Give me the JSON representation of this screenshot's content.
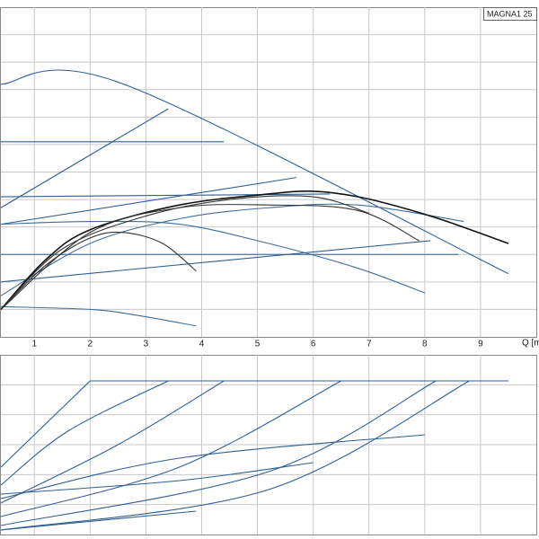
{
  "chart_data": [
    {
      "type": "line",
      "title": "MAGNA1 25",
      "x_label": "Q [m",
      "xlim": [
        0.4,
        10
      ],
      "xticks": [
        1,
        2,
        3,
        4,
        5,
        6,
        7,
        8,
        9
      ],
      "ylim": [
        0,
        12
      ],
      "grid": true,
      "series": [
        {
          "color": "#2f5f93",
          "x": [
            0.4,
            2.6,
            9.5
          ],
          "values": [
            9.2,
            9.2,
            2.3
          ]
        },
        {
          "color": "#2f5f93",
          "x": [
            0.4,
            4.4
          ],
          "values": [
            7.1,
            7.1
          ]
        },
        {
          "color": "#2f5f93",
          "x": [
            0.4,
            3.4
          ],
          "values": [
            4.7,
            8.3
          ]
        },
        {
          "color": "#2f5f93",
          "x": [
            0.4,
            6.3
          ],
          "values": [
            5.1,
            5.2
          ]
        },
        {
          "color": "#2f5f93",
          "x": [
            0.4,
            5.7
          ],
          "values": [
            4.1,
            5.8
          ]
        },
        {
          "color": "#2f5f93",
          "x": [
            0.4,
            8.6
          ],
          "values": [
            3.0,
            3.0
          ]
        },
        {
          "color": "#2f5f93",
          "x": [
            0.4,
            8.1
          ],
          "values": [
            2.0,
            3.5
          ]
        },
        {
          "color": "#3d6d9c",
          "x": [
            0.4,
            2.0,
            3.6,
            5.2,
            6.8,
            8.0
          ],
          "values": [
            4.1,
            4.2,
            4.1,
            3.4,
            2.5,
            1.6
          ]
        },
        {
          "color": "#3d6d9c",
          "x": [
            0.4,
            2.0,
            2.8,
            3.9
          ],
          "values": [
            1.1,
            1.0,
            0.8,
            0.4
          ]
        },
        {
          "color": "#3d6d9c",
          "x": [
            0.4,
            2.0,
            3.6,
            5.2,
            6.8,
            8.7
          ],
          "values": [
            1.5,
            3.4,
            4.3,
            4.7,
            4.8,
            4.2
          ]
        },
        {
          "color": "#111111",
          "x": [
            0.4,
            1.2,
            2.0,
            3.6,
            5.2,
            6.0,
            6.8,
            7.6,
            8.4,
            9.5
          ],
          "values": [
            1.0,
            2.8,
            3.9,
            4.8,
            5.2,
            5.3,
            5.1,
            4.7,
            4.2,
            3.4
          ]
        },
        {
          "color": "#333333",
          "x": [
            0.4,
            1.2,
            2.0,
            2.6,
            3.3,
            3.9
          ],
          "values": [
            1.0,
            2.6,
            3.6,
            3.8,
            3.4,
            2.4
          ]
        },
        {
          "color": "#333333",
          "x": [
            0.4,
            2.0,
            3.6,
            5.2,
            6.8,
            7.9
          ],
          "values": [
            1.0,
            3.8,
            4.7,
            4.8,
            4.6,
            3.5
          ]
        },
        {
          "color": "#333333",
          "x": [
            0.4,
            1.5,
            3.0,
            4.5,
            6.0,
            7.0
          ],
          "values": [
            1.0,
            3.2,
            4.4,
            5.0,
            5.1,
            4.5
          ]
        }
      ]
    },
    {
      "type": "line",
      "xlim": [
        0.4,
        10
      ],
      "ylim": [
        0,
        200
      ],
      "grid": true,
      "series": [
        {
          "color": "#2f5f93",
          "x": [
            0.4,
            2.0
          ],
          "values": [
            75,
            171
          ]
        },
        {
          "color": "#2f5f93",
          "x": [
            2.0,
            9.5
          ],
          "values": [
            171,
            171
          ]
        },
        {
          "color": "#2f5f93",
          "x": [
            0.4,
            1.6,
            3.4
          ],
          "values": [
            55,
            115,
            171
          ]
        },
        {
          "color": "#2f5f93",
          "x": [
            0.4,
            2.5,
            4.4
          ],
          "values": [
            35,
            100,
            171
          ]
        },
        {
          "color": "#2f5f93",
          "x": [
            0.4,
            3.6,
            6.5
          ],
          "values": [
            20,
            75,
            171
          ]
        },
        {
          "color": "#2f5f93",
          "x": [
            0.4,
            5.2,
            8.2
          ],
          "values": [
            10,
            70,
            171
          ]
        },
        {
          "color": "#2f5f93",
          "x": [
            0.4,
            5.2,
            8.8
          ],
          "values": [
            5,
            50,
            171
          ]
        },
        {
          "color": "#2f5f93",
          "x": [
            0.4,
            3.6,
            8.0
          ],
          "values": [
            40,
            85,
            111
          ]
        },
        {
          "color": "#2f5f93",
          "x": [
            0.4,
            3.6,
            6.0
          ],
          "values": [
            45,
            60,
            80
          ]
        },
        {
          "color": "#2f5f93",
          "x": [
            0.4,
            3.9
          ],
          "values": [
            5,
            26
          ]
        }
      ]
    }
  ]
}
